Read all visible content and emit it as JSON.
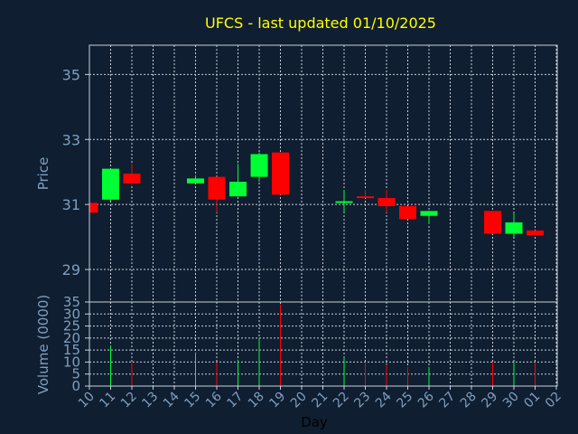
{
  "chart_data": {
    "type": "candlestick",
    "title": "UFCS - last updated 01/10/2025",
    "colors": {
      "background": "#0f1e30",
      "up": "#00ff33",
      "down": "#ff0000",
      "title": "#ffff00",
      "axis_text": "#7f9fc0",
      "grid": "#c8d0dc"
    },
    "price_panel": {
      "ylabel": "Price",
      "ylim": [
        28.0,
        35.9
      ],
      "yticks": [
        29,
        31,
        33,
        35
      ],
      "grid": true
    },
    "volume_panel": {
      "ylabel": "Volume (0000)",
      "ylim": [
        0,
        35
      ],
      "yticks": [
        0,
        5,
        10,
        15,
        20,
        25,
        30,
        35
      ],
      "grid": true
    },
    "xlabel": "Day",
    "x_ticks": [
      "10",
      "11",
      "12",
      "13",
      "14",
      "15",
      "16",
      "17",
      "18",
      "19",
      "20",
      "21",
      "22",
      "23",
      "24",
      "25",
      "26",
      "27",
      "28",
      "29",
      "30",
      "01",
      "02"
    ],
    "candles": [
      {
        "x": 0,
        "open": 31.05,
        "close": 30.75,
        "high": 31.05,
        "low": 30.75,
        "volume": 0
      },
      {
        "x": 1,
        "open": 31.15,
        "close": 32.1,
        "high": 32.1,
        "low": 31.1,
        "volume": 17
      },
      {
        "x": 2,
        "open": 31.95,
        "close": 31.65,
        "high": 32.25,
        "low": 31.6,
        "volume": 10
      },
      {
        "x": 5,
        "open": 31.65,
        "close": 31.8,
        "high": 31.9,
        "low": 31.65,
        "volume": 14
      },
      {
        "x": 6,
        "open": 31.85,
        "close": 31.15,
        "high": 31.85,
        "low": 30.75,
        "volume": 10
      },
      {
        "x": 7,
        "open": 31.25,
        "close": 31.7,
        "high": 32.25,
        "low": 31.25,
        "volume": 11
      },
      {
        "x": 8,
        "open": 31.85,
        "close": 32.55,
        "high": 32.6,
        "low": 31.7,
        "volume": 20
      },
      {
        "x": 9,
        "open": 32.6,
        "close": 31.3,
        "high": 32.6,
        "low": 31.3,
        "volume": 34
      },
      {
        "x": 12,
        "open": 31.05,
        "close": 31.1,
        "high": 31.45,
        "low": 30.75,
        "volume": 12
      },
      {
        "x": 13,
        "open": 31.25,
        "close": 31.2,
        "high": 31.45,
        "low": 31.2,
        "volume": 10
      },
      {
        "x": 14,
        "open": 31.2,
        "close": 30.95,
        "high": 31.45,
        "low": 30.75,
        "volume": 9
      },
      {
        "x": 15,
        "open": 30.95,
        "close": 30.55,
        "high": 30.95,
        "low": 30.55,
        "volume": 8
      },
      {
        "x": 16,
        "open": 30.65,
        "close": 30.8,
        "high": 30.8,
        "low": 30.4,
        "volume": 8
      },
      {
        "x": 19,
        "open": 30.8,
        "close": 30.1,
        "high": 30.8,
        "low": 30.1,
        "volume": 10
      },
      {
        "x": 20,
        "open": 30.1,
        "close": 30.45,
        "high": 30.75,
        "low": 30.0,
        "volume": 10
      },
      {
        "x": 21,
        "open": 30.2,
        "close": 30.05,
        "high": 30.2,
        "low": 30.05,
        "volume": 10
      }
    ]
  }
}
